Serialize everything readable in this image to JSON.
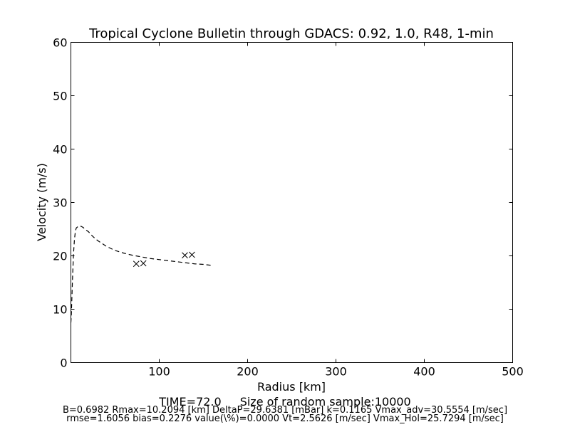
{
  "chart_data": {
    "type": "line",
    "title": "Tropical Cyclone Bulletin through GDACS: 0.92, 1.0, R48, 1-min",
    "xlabel": "Radius [km]",
    "ylabel": "Velocity (m/s)",
    "xlim": [
      0,
      500
    ],
    "ylim": [
      0,
      60
    ],
    "xticks": [
      100,
      200,
      300,
      400,
      500
    ],
    "yticks": [
      0,
      10,
      20,
      30,
      40,
      50,
      60
    ],
    "grid": false,
    "legend": "none",
    "series": [
      {
        "style": "dashed-line",
        "x": [
          0,
          0.5,
          1,
          2,
          3,
          4,
          5,
          6,
          8,
          10,
          12,
          14,
          16,
          20,
          25,
          30,
          40,
          50,
          60,
          70,
          80,
          90,
          100,
          110,
          120,
          130,
          140,
          150,
          160
        ],
        "y": [
          7.5,
          9.0,
          11.5,
          16.5,
          20.5,
          23.0,
          24.5,
          25.2,
          25.5,
          25.6,
          25.5,
          25.3,
          25.0,
          24.5,
          23.6,
          22.9,
          21.8,
          21.0,
          20.5,
          20.1,
          19.8,
          19.5,
          19.3,
          19.1,
          18.9,
          18.7,
          18.5,
          18.4,
          18.2
        ]
      },
      {
        "style": "x-markers",
        "x": [
          74,
          82,
          129,
          137
        ],
        "y": [
          18.5,
          18.6,
          20.1,
          20.2
        ]
      }
    ]
  },
  "caption": {
    "time": "TIME=72.0",
    "sample": "Size of random sample:10000",
    "params": "B=0.6982 Rmax=10.2094 [km]  DeltaP=29.6381 [mBar] k=0.1165 Vmax_adv=30.5554 [m/sec]",
    "stats": "rmse=1.6056 bias=0.2276 value(\\%)=0.0000 Vt=2.5626 [m/sec] Vmax_Hol=25.7294 [m/sec]"
  }
}
